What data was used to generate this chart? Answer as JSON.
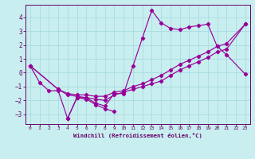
{
  "background_color": "#c8eef0",
  "grid_color": "#a8dce0",
  "line_color": "#990099",
  "xlabel": "Windchill (Refroidissement éolien,°C)",
  "xlim": [
    -0.5,
    23.5
  ],
  "ylim": [
    -3.7,
    4.9
  ],
  "xticks": [
    0,
    1,
    2,
    3,
    4,
    5,
    6,
    7,
    8,
    9,
    10,
    11,
    12,
    13,
    14,
    15,
    16,
    17,
    18,
    19,
    20,
    21,
    22,
    23
  ],
  "yticks": [
    -3,
    -2,
    -1,
    0,
    1,
    2,
    3,
    4
  ],
  "line1_x": [
    0,
    1,
    2,
    3,
    4,
    5,
    6,
    7,
    8,
    9,
    10,
    11,
    12,
    13,
    14,
    15,
    16,
    17,
    18,
    19,
    20,
    21,
    23
  ],
  "line1_y": [
    0.5,
    -0.7,
    -1.3,
    -1.3,
    -3.3,
    -1.8,
    -1.8,
    -2.2,
    -2.4,
    -1.5,
    -1.5,
    0.5,
    2.5,
    4.5,
    3.6,
    3.2,
    3.1,
    3.3,
    3.4,
    3.5,
    1.9,
    1.3,
    -0.1
  ],
  "line2_x": [
    0,
    3,
    4,
    5,
    6,
    7,
    8,
    9,
    10,
    11,
    12,
    13,
    14,
    15,
    16,
    17,
    18,
    19,
    20,
    21,
    23
  ],
  "line2_y": [
    0.5,
    -1.2,
    -1.5,
    -1.6,
    -1.6,
    -1.7,
    -1.7,
    -1.4,
    -1.3,
    -1.0,
    -0.8,
    -0.5,
    -0.2,
    0.2,
    0.6,
    0.9,
    1.2,
    1.5,
    1.9,
    2.1,
    3.5
  ],
  "line3_x": [
    0,
    3,
    4,
    5,
    6,
    7,
    8,
    9,
    10,
    11,
    12,
    13,
    14,
    15,
    16,
    17,
    18,
    19,
    20,
    21,
    23
  ],
  "line3_y": [
    0.5,
    -1.2,
    -1.6,
    -1.7,
    -1.8,
    -1.9,
    -2.0,
    -1.6,
    -1.4,
    -1.2,
    -1.0,
    -0.8,
    -0.6,
    -0.2,
    0.2,
    0.5,
    0.8,
    1.1,
    1.5,
    1.7,
    3.5
  ],
  "line4_x": [
    4,
    5,
    6,
    7,
    8,
    9
  ],
  "line4_y": [
    -3.3,
    -1.8,
    -1.9,
    -2.3,
    -2.6,
    -2.8
  ]
}
